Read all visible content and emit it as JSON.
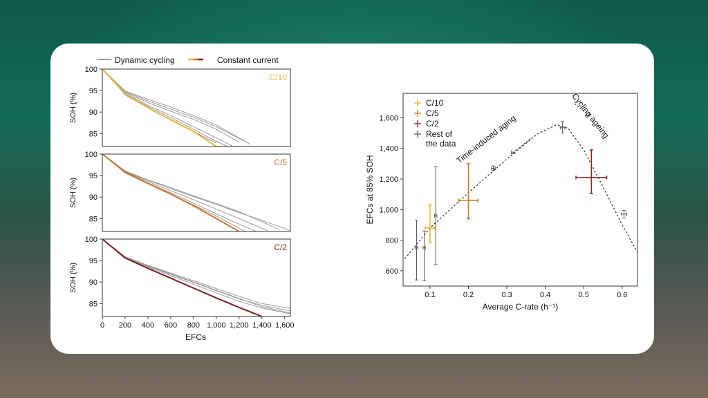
{
  "chart_data": [
    {
      "type": "line",
      "legend": [
        {
          "label": "Dynamic cycling",
          "color": "#999999"
        },
        {
          "label": "Constant current",
          "colors": [
            "#f0b93a",
            "#c8782c",
            "#7a1f1a"
          ]
        }
      ],
      "xlabel": "EFCs",
      "ylabel": "SOH (%)",
      "xlim": [
        0,
        1650
      ],
      "ylim": [
        82,
        100
      ],
      "xticks": [
        "0",
        "200",
        "400",
        "600",
        "800",
        "1,000",
        "1,200",
        "1,400",
        "1,600"
      ],
      "yticks": [
        "100",
        "95",
        "90",
        "85"
      ],
      "panels": [
        {
          "label": "C/10",
          "color": "#e8b53a",
          "constant_current": {
            "x": [
              0,
              200,
              400,
              600,
              800,
              1000
            ],
            "y": [
              100,
              94.3,
              91.0,
              88.2,
              85.5,
              82.0
            ]
          },
          "dynamic_cycling": [
            {
              "x": [
                0,
                200,
                400,
                600,
                800,
                1000,
                1200
              ],
              "y": [
                100,
                94.6,
                92.2,
                90.2,
                88.3,
                86.0,
                83.0
              ]
            },
            {
              "x": [
                0,
                200,
                400,
                600,
                800,
                1000,
                1150
              ],
              "y": [
                100,
                94.4,
                91.6,
                89.2,
                86.6,
                84.0,
                82.0
              ]
            },
            {
              "x": [
                0,
                200,
                400,
                600,
                800,
                1000,
                1250
              ],
              "y": [
                100,
                94.8,
                92.6,
                90.7,
                88.8,
                86.6,
                83.2
              ]
            },
            {
              "x": [
                0,
                200,
                400,
                600,
                800,
                1000,
                1100
              ],
              "y": [
                100,
                94.2,
                91.3,
                88.7,
                86.0,
                83.2,
                82.0
              ]
            },
            {
              "x": [
                0,
                200,
                400,
                600,
                800,
                1000,
                1300
              ],
              "y": [
                100,
                94.9,
                93.0,
                91.2,
                89.2,
                87.0,
                82.5
              ]
            },
            {
              "x": [
                0,
                200,
                400,
                600,
                800,
                1000
              ],
              "y": [
                100,
                94.0,
                91.0,
                88.3,
                85.5,
                82.8
              ]
            }
          ]
        },
        {
          "label": "C/5",
          "color": "#c8782c",
          "constant_current": {
            "x": [
              0,
              200,
              400,
              600,
              800,
              1000,
              1200
            ],
            "y": [
              100,
              95.8,
              93.2,
              90.7,
              88.0,
              85.0,
              82.0
            ]
          },
          "dynamic_cycling": [
            {
              "x": [
                0,
                200,
                400,
                600,
                800,
                1000,
                1200,
                1400,
                1650
              ],
              "y": [
                100,
                96.0,
                93.9,
                92.0,
                90.1,
                88.3,
                86.4,
                84.6,
                82.2
              ]
            },
            {
              "x": [
                0,
                200,
                400,
                600,
                800,
                1000,
                1200,
                1450
              ],
              "y": [
                100,
                95.9,
                93.6,
                91.5,
                89.4,
                87.2,
                85.0,
                82.2
              ]
            },
            {
              "x": [
                0,
                200,
                400,
                600,
                800,
                1000,
                1200,
                1350
              ],
              "y": [
                100,
                95.7,
                93.3,
                91.0,
                88.6,
                86.1,
                83.7,
                82.0
              ]
            },
            {
              "x": [
                0,
                200,
                400,
                600,
                800,
                1000,
                1200,
                1550
              ],
              "y": [
                100,
                96.1,
                94.0,
                92.2,
                90.3,
                88.5,
                86.6,
                82.5
              ]
            },
            {
              "x": [
                0,
                200,
                400,
                600,
                800,
                1000,
                1250
              ],
              "y": [
                100,
                95.6,
                93.1,
                90.6,
                88.2,
                85.6,
                82.0
              ]
            }
          ]
        },
        {
          "label": "C/2",
          "color": "#7a1f1a",
          "constant_current": {
            "x": [
              0,
              200,
              400,
              600,
              800,
              1000,
              1200,
              1400
            ],
            "y": [
              100,
              95.6,
              93.2,
              90.9,
              88.6,
              86.3,
              84.1,
              82.0
            ]
          },
          "dynamic_cycling": [
            {
              "x": [
                0,
                200,
                400,
                600,
                800,
                1000,
                1200,
                1400,
                1650
              ],
              "y": [
                100,
                95.8,
                93.7,
                91.8,
                89.9,
                88.0,
                86.1,
                84.6,
                83.3
              ]
            },
            {
              "x": [
                0,
                200,
                400,
                600,
                800,
                1000,
                1200,
                1400,
                1650
              ],
              "y": [
                100,
                95.9,
                93.9,
                92.1,
                90.3,
                88.5,
                86.7,
                85.0,
                83.9
              ]
            },
            {
              "x": [
                0,
                200,
                400,
                600,
                800,
                1000,
                1200,
                1400,
                1650
              ],
              "y": [
                100,
                95.7,
                93.5,
                91.5,
                89.5,
                87.5,
                85.5,
                84.0,
                82.6
              ]
            },
            {
              "x": [
                0,
                200,
                400,
                600,
                800,
                1000,
                1200,
                1400,
                1650
              ],
              "y": [
                100,
                95.8,
                93.8,
                91.9,
                90.0,
                88.1,
                86.2,
                84.3,
                82.8
              ]
            }
          ]
        }
      ]
    },
    {
      "type": "scatter",
      "xlabel": "Average C-rate (h⁻¹)",
      "ylabel": "EFCs at 85% SOH",
      "xlim": [
        0.03,
        0.64
      ],
      "ylim": [
        500,
        1760
      ],
      "xticks": [
        0.1,
        0.2,
        0.3,
        0.4,
        0.5,
        0.6
      ],
      "xtick_labels": [
        "0.1",
        "0.2",
        "0.3",
        "0.4",
        "0.5",
        "0.6"
      ],
      "yticks": [
        600,
        800,
        1000,
        1200,
        1400,
        1600
      ],
      "ytick_labels": [
        "600",
        "800",
        "1,000",
        "1,200",
        "1,400",
        "1,600"
      ],
      "legend": [
        {
          "label": "C/10",
          "color": "#e8b53a"
        },
        {
          "label": "C/5",
          "color": "#c8782c"
        },
        {
          "label": "C/2",
          "color": "#8a2a22"
        },
        {
          "label": "Rest of",
          "label2": "the data",
          "color": "#666666"
        }
      ],
      "points": [
        {
          "group": "C/10",
          "x": 0.1,
          "y": 880,
          "xerr": 0.012,
          "yerr_lo": 95,
          "yerr_hi": 150
        },
        {
          "group": "C/5",
          "x": 0.2,
          "y": 1060,
          "xerr": 0.025,
          "yerr_lo": 120,
          "yerr_hi": 240
        },
        {
          "group": "C/2",
          "x": 0.52,
          "y": 1210,
          "xerr": 0.04,
          "yerr_lo": 105,
          "yerr_hi": 180
        },
        {
          "group": "Rest of the data",
          "x": 0.065,
          "y": 750,
          "xerr": 0.003,
          "yerr_lo": 210,
          "yerr_hi": 180
        },
        {
          "group": "Rest of the data",
          "x": 0.085,
          "y": 750,
          "xerr": 0.003,
          "yerr_lo": 215,
          "yerr_hi": 110
        },
        {
          "group": "Rest of the data",
          "x": 0.115,
          "y": 960,
          "xerr": 0.003,
          "yerr_lo": 320,
          "yerr_hi": 320
        },
        {
          "group": "Rest of the data",
          "x": 0.265,
          "y": 1270,
          "xerr": 0.005,
          "yerr_lo": 15,
          "yerr_hi": 15
        },
        {
          "group": "Rest of the data",
          "x": 0.445,
          "y": 1535,
          "xerr": 0.006,
          "yerr_lo": 35,
          "yerr_hi": 40
        },
        {
          "group": "Rest of the data",
          "x": 0.605,
          "y": 970,
          "xerr": 0.007,
          "yerr_lo": 25,
          "yerr_hi": 25
        }
      ],
      "trend": {
        "x": [
          0.035,
          0.1,
          0.2,
          0.3,
          0.38,
          0.43,
          0.46,
          0.5,
          0.55,
          0.6,
          0.64
        ],
        "y": [
          680,
          880,
          1110,
          1330,
          1495,
          1555,
          1530,
          1390,
          1150,
          900,
          720
        ]
      },
      "annotations": [
        {
          "text": "Time-induced aging",
          "anchor_x": 0.29,
          "anchor_y": 1400
        },
        {
          "text": "Cycling ageing",
          "anchor_x": 0.53,
          "anchor_y": 1580
        }
      ]
    }
  ]
}
